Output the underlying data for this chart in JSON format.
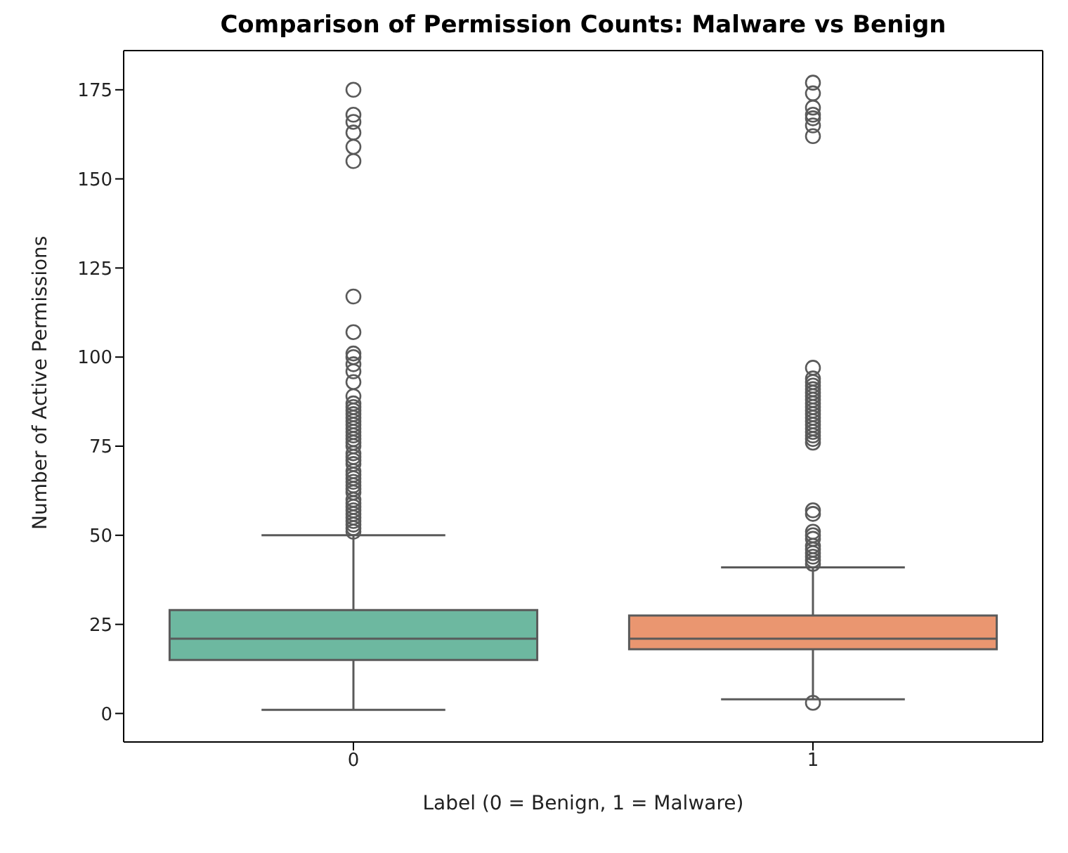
{
  "chart_data": {
    "type": "box",
    "title": "Comparison of Permission Counts: Malware vs Benign",
    "xlabel": "Label (0 = Benign, 1 = Malware)",
    "ylabel": "Number of Active Permissions",
    "categories": [
      "0",
      "1"
    ],
    "colors": [
      "#6db8a0",
      "#ea9670"
    ],
    "boxes": [
      {
        "low": 1,
        "q1": 15,
        "median": 21,
        "q3": 29,
        "high": 50,
        "outliers": [
          175,
          168,
          166,
          163,
          159,
          155,
          117,
          107,
          101,
          100,
          98,
          96,
          93,
          89,
          87,
          86,
          85,
          84,
          83,
          82,
          81,
          80,
          79,
          78,
          77,
          76,
          75,
          73,
          72,
          71,
          70,
          68,
          67,
          66,
          65,
          64,
          63,
          62,
          60,
          59,
          58,
          57,
          56,
          55,
          54,
          53,
          52,
          51
        ]
      },
      {
        "low": 4,
        "q1": 18,
        "median": 21,
        "q3": 27.5,
        "high": 41,
        "outliers": [
          177,
          174,
          170,
          168,
          167,
          165,
          162,
          97,
          94,
          93,
          92,
          91,
          90,
          89,
          88,
          87,
          86,
          85,
          84,
          83,
          82,
          81,
          80,
          79,
          78,
          77,
          76,
          57,
          56,
          51,
          50,
          49,
          47,
          46,
          45,
          44,
          43,
          42,
          3
        ]
      }
    ],
    "ylim": [
      -8,
      186
    ],
    "yticks": [
      0,
      25,
      50,
      75,
      100,
      125,
      150,
      175
    ],
    "grid": false
  }
}
